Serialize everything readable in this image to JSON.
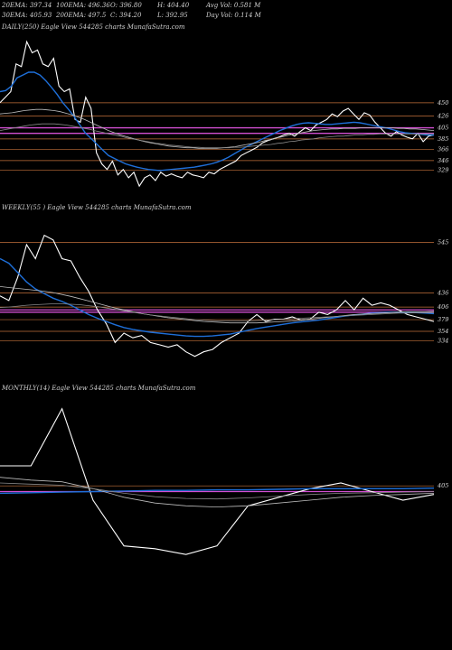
{
  "header": {
    "row1": [
      "20EMA: 397.34",
      "100EMA: 496.36",
      "O: 396.80",
      "H: 404.40",
      "Avg Vol: 0.581 M"
    ],
    "row2": [
      "30EMA: 405.93",
      "200EMA: 497.5",
      "C: 394.20",
      "L: 392.95",
      "Day Vol: 0.114  M"
    ]
  },
  "colors": {
    "background": "#000000",
    "price": "#ffffff",
    "ema_fast": "#1e6fd9",
    "level": "#c2703a",
    "pivot": "#d24fd2"
  },
  "chart_data": [
    {
      "type": "line",
      "label": "DAILY(250) Eagle  View  544285 charts MunafaSutra.com",
      "y_levels": [
        450,
        426,
        405,
        385,
        366,
        346,
        329
      ],
      "pivot_levels": [
        395,
        405
      ],
      "series": [
        {
          "role": "price",
          "values": [
            450,
            460,
            470,
            520,
            515,
            560,
            540,
            545,
            520,
            515,
            530,
            480,
            470,
            475,
            420,
            415,
            460,
            440,
            360,
            340,
            330,
            345,
            320,
            330,
            315,
            325,
            300,
            315,
            320,
            310,
            325,
            318,
            322,
            318,
            315,
            325,
            320,
            318,
            315,
            325,
            322,
            330,
            335,
            340,
            345,
            355,
            360,
            365,
            370,
            378,
            382,
            385,
            388,
            392,
            395,
            390,
            398,
            405,
            400,
            410,
            415,
            420,
            430,
            425,
            435,
            440,
            430,
            420,
            432,
            428,
            415,
            405,
            395,
            390,
            398,
            392,
            388,
            385,
            395,
            380,
            390,
            392
          ]
        },
        {
          "role": "ema_fast",
          "values": [
            470,
            472,
            480,
            495,
            500,
            505,
            505,
            500,
            490,
            478,
            465,
            450,
            438,
            425,
            410,
            395,
            385,
            375,
            365,
            355,
            350,
            345,
            340,
            337,
            334,
            332,
            330,
            329,
            328,
            329,
            330,
            331,
            332,
            333,
            334,
            336,
            338,
            340,
            343,
            347,
            352,
            358,
            364,
            370,
            375,
            380,
            385,
            390,
            395,
            400,
            404,
            408,
            411,
            413,
            414,
            413,
            412,
            411,
            411,
            412,
            413,
            414,
            415,
            414,
            412,
            410,
            408,
            406,
            404,
            401,
            398,
            396,
            395,
            394,
            393,
            392,
            392
          ]
        },
        {
          "role": "ema_slow",
          "values": [
            430,
            431,
            432,
            434,
            436,
            437,
            438,
            438,
            437,
            436,
            434,
            431,
            428,
            424,
            420,
            415,
            410,
            405,
            400,
            396,
            392,
            389,
            386,
            383,
            380,
            378,
            376,
            374,
            372,
            371,
            370,
            369,
            369,
            368,
            368,
            368,
            368,
            369,
            370,
            371,
            373,
            375,
            377,
            379,
            382,
            384,
            387,
            389,
            392,
            394,
            396,
            398,
            400,
            401,
            402,
            403,
            403,
            404,
            404,
            404,
            405,
            405,
            405,
            405,
            405,
            405,
            404,
            404,
            403,
            403,
            402,
            401,
            400
          ]
        },
        {
          "role": "ema_long",
          "values": [
            400,
            402,
            404,
            406,
            408,
            410,
            411,
            412,
            412,
            412,
            411,
            410,
            408,
            406,
            404,
            402,
            399,
            397,
            394,
            392,
            390,
            387,
            385,
            383,
            381,
            379,
            377,
            376,
            374,
            373,
            372,
            371,
            370,
            370,
            369,
            369,
            369,
            369,
            369,
            370,
            370,
            371,
            372,
            373,
            374,
            375,
            377,
            378,
            380,
            381,
            383,
            384,
            385,
            387,
            388,
            389,
            390,
            390,
            391,
            392,
            392,
            393,
            393,
            394,
            394,
            394,
            394,
            394,
            394,
            394,
            394,
            394,
            394
          ]
        }
      ]
    },
    {
      "type": "line",
      "label": "WEEKLY(55                          ) Eagle  View  544285 charts MunafaSutra.com",
      "y_levels": [
        545,
        436,
        406,
        379,
        354,
        334
      ],
      "pivot_levels": [
        395,
        400
      ],
      "series": [
        {
          "role": "price",
          "values": [
            430,
            420,
            470,
            540,
            510,
            560,
            550,
            510,
            505,
            470,
            440,
            400,
            370,
            330,
            350,
            340,
            345,
            330,
            325,
            320,
            325,
            310,
            300,
            310,
            315,
            330,
            340,
            350,
            375,
            390,
            375,
            380,
            380,
            385,
            378,
            380,
            395,
            390,
            400,
            420,
            400,
            425,
            410,
            415,
            410,
            400,
            390,
            385,
            380,
            375
          ]
        },
        {
          "role": "ema_fast",
          "values": [
            510,
            500,
            480,
            460,
            445,
            435,
            425,
            418,
            410,
            400,
            390,
            382,
            375,
            368,
            362,
            358,
            355,
            352,
            350,
            348,
            346,
            344,
            343,
            343,
            344,
            346,
            348,
            352,
            356,
            360,
            363,
            366,
            369,
            372,
            374,
            376,
            378,
            381,
            384,
            387,
            389,
            391,
            393,
            394,
            395,
            395,
            395,
            394,
            393,
            392
          ]
        },
        {
          "role": "ema_slow",
          "values": [
            450,
            448,
            446,
            444,
            442,
            440,
            437,
            433,
            429,
            424,
            419,
            414,
            409,
            404,
            400,
            396,
            392,
            389,
            386,
            383,
            381,
            379,
            377,
            375,
            374,
            373,
            372,
            372,
            372,
            372,
            373,
            374,
            375,
            376,
            378,
            380,
            382,
            384,
            386,
            388,
            390,
            391,
            392,
            393,
            394,
            395,
            396,
            396,
            396,
            397
          ]
        },
        {
          "role": "ema_long",
          "values": [
            405,
            406,
            408,
            410,
            411,
            412,
            413,
            413,
            412,
            411,
            409,
            407,
            404,
            401,
            398,
            395,
            392,
            389,
            387,
            385,
            383,
            381,
            379,
            378,
            377,
            376,
            376,
            376,
            376,
            377,
            378,
            379,
            380,
            381,
            382,
            383,
            384,
            385,
            386,
            387,
            388,
            389,
            390,
            391,
            392,
            393,
            393,
            394,
            394,
            394
          ]
        }
      ]
    },
    {
      "type": "line",
      "label": "MONTHLY(14) Eagle  View  544285 charts MunafaSutra.com",
      "y_levels": [
        405
      ],
      "pivot_levels": [
        395
      ],
      "series": [
        {
          "role": "price",
          "values": [
            440,
            440,
            540,
            380,
            300,
            295,
            285,
            300,
            370,
            385,
            400,
            410,
            395,
            380,
            390
          ]
        },
        {
          "role": "ema_fast",
          "values": [
            392,
            393,
            394,
            395,
            396,
            397,
            397,
            398,
            398,
            399,
            400,
            400,
            400,
            400,
            401
          ]
        },
        {
          "role": "ema_slow",
          "values": [
            420,
            415,
            412,
            400,
            385,
            375,
            370,
            368,
            370,
            375,
            380,
            385,
            388,
            390,
            392
          ]
        },
        {
          "role": "ema_long",
          "values": [
            410,
            408,
            406,
            400,
            392,
            386,
            383,
            382,
            384,
            387,
            390,
            392,
            393,
            394,
            395
          ]
        }
      ]
    }
  ]
}
